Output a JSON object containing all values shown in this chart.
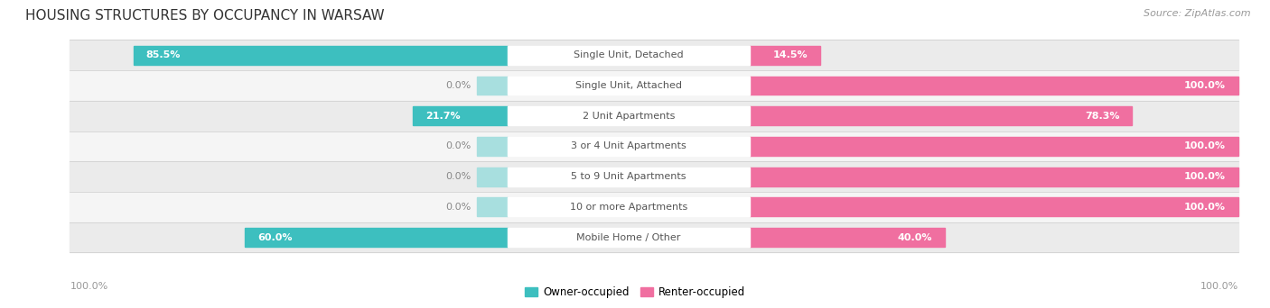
{
  "title": "HOUSING STRUCTURES BY OCCUPANCY IN WARSAW",
  "source": "Source: ZipAtlas.com",
  "categories": [
    "Single Unit, Detached",
    "Single Unit, Attached",
    "2 Unit Apartments",
    "3 or 4 Unit Apartments",
    "5 to 9 Unit Apartments",
    "10 or more Apartments",
    "Mobile Home / Other"
  ],
  "owner_pct": [
    85.5,
    0.0,
    21.7,
    0.0,
    0.0,
    0.0,
    60.0
  ],
  "renter_pct": [
    14.5,
    100.0,
    78.3,
    100.0,
    100.0,
    100.0,
    40.0
  ],
  "owner_color": "#3DBFBF",
  "owner_color_light": "#A8DFDF",
  "renter_color": "#F06FA0",
  "renter_color_light": "#F8B8D0",
  "row_bg_odd": "#EBEBEB",
  "row_bg_even": "#F5F5F5",
  "title_fontsize": 11,
  "source_fontsize": 8,
  "bar_label_fontsize": 8,
  "category_fontsize": 8,
  "legend_fontsize": 8.5,
  "axis_label_fontsize": 8,
  "figsize": [
    14.06,
    3.42
  ],
  "dpi": 100,
  "left_pct_labels": [
    "100.0%"
  ],
  "right_pct_labels": [
    "100.0%"
  ]
}
